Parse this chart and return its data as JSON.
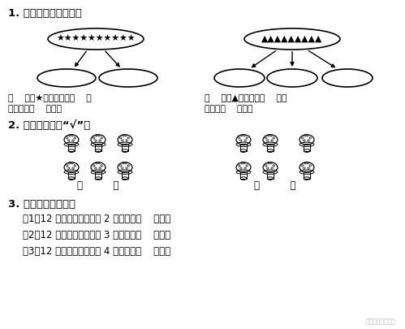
{
  "title": "",
  "background_color": "#ffffff",
  "text_color": "#000000",
  "section1_title": "1. 先画一画，再填空。",
  "section2_title": "2. 是平均分的画“√”。",
  "section3_title": "3. 想一想，再填空。",
  "q3_items": [
    "（1）12 根小棒，平均分成 2 堆，每堆（    ）根。",
    "（2）12 根小棒，平均分成 3 堆，每堆（    ）根。",
    "（3）12 根小棒，平均分成 4 堆，每堆（    ）根。"
  ],
  "q1_left_text1": "（    ）个★，平均分成（    ）",
  "q1_left_text2": "，每份有（    ）个。",
  "q1_right_text1": "（    ）个▲平均分成（    ）份",
  "q1_right_text2": "每份有（    ）个。",
  "q2_bracket_left": "（          ）",
  "q2_bracket_right": "（          ）",
  "watermark": "绿色圈二年级资源",
  "stars_count": 10,
  "triangles_count": 9
}
